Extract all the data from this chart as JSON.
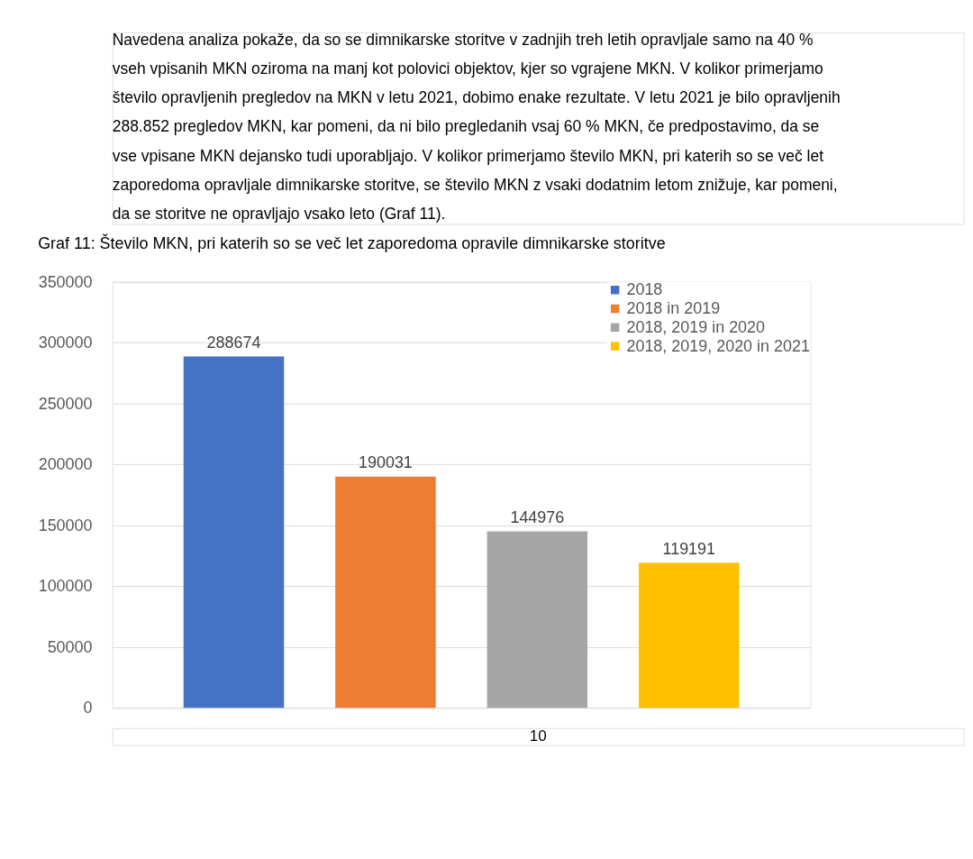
{
  "chart_data": {
    "type": "bar",
    "title": "Graf 11: Število MKN, pri katerih so se več let zaporedoma opravile dimnikarske storitve",
    "categories": [
      null,
      null,
      null,
      null
    ],
    "series": [
      {
        "name": "2018",
        "color": "#4472c4",
        "values": [
          288674,
          null,
          null,
          null
        ]
      },
      {
        "name": "2018 in 2019",
        "color": "#ed7d31",
        "values": [
          null,
          190031,
          null,
          null
        ]
      },
      {
        "name": "2018, 2019 in 2020",
        "color": "#a5a5a5",
        "values": [
          null,
          null,
          144976,
          null
        ]
      },
      {
        "name": "2018, 2019, 2020 in 2021",
        "color": "#ffc000",
        "values": [
          null,
          null,
          null,
          119191
        ]
      }
    ],
    "ylim": [
      0,
      350000
    ],
    "yticks": [
      0,
      50000,
      100000,
      150000,
      200000,
      250000,
      300000,
      350000
    ],
    "grid": "y",
    "legend": "top right",
    "data_labels": true,
    "tick_labels": "y",
    "annotations": [
      "Navedena analiza pokaže, da so se dimnikarske storitve v zadnjih treh letih opravljale samo na 40 %\nvseh vpisanih MKN oziroma na manj kot polovici objektov, kjer so vgrajene MKN. V kolikor primerjamo\nštevilo opravljenih pregledov na MKN v letu 2021, dobimo enake rezultate. V letu 2021 je bilo opravljenih\n288.852 pregledov MKN, kar pomeni, da ni bilo pregledanih vsaj 60 % MKN, če predpostavimo, da se\nvse vpisane MKN dejansko tudi uporabljajo. V kolikor primerjamo število MKN, pri katerih so se več let\nzaporedoma opravljale dimnikarske storitve, se število MKN z vsaki dodatnim letom znižuje,  kar pomeni,\nda se storitve ne opravljajo vsako leto (Graf 11).",
      "10"
    ]
  }
}
